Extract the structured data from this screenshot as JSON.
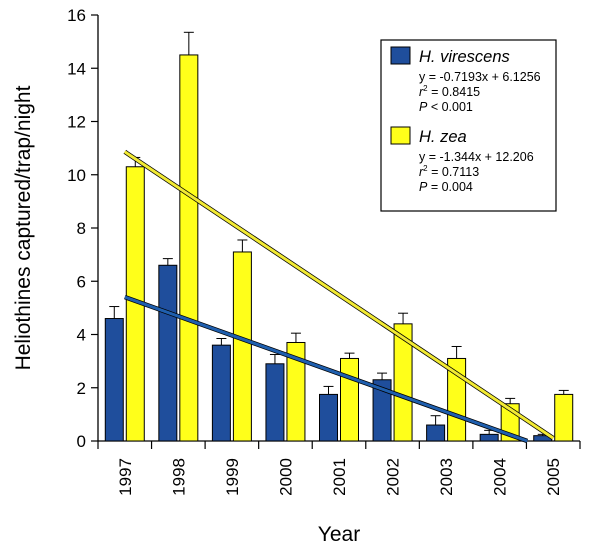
{
  "chart_data": {
    "type": "bar",
    "xlabel": "Year",
    "ylabel": "Heliothines captured/trap/night",
    "ylim": [
      0,
      16
    ],
    "yticks": [
      0,
      2,
      4,
      6,
      8,
      10,
      12,
      14,
      16
    ],
    "categories": [
      "1997",
      "1998",
      "1999",
      "2000",
      "2001",
      "2002",
      "2003",
      "2004",
      "2005"
    ],
    "grid": false,
    "legend_position": "top-right",
    "series": [
      {
        "name": "H. virescens",
        "color": "#1f4e9c",
        "values": [
          4.6,
          6.6,
          3.6,
          2.9,
          1.75,
          2.3,
          0.6,
          0.25,
          0.2
        ],
        "errors": [
          0.45,
          0.25,
          0.25,
          0.35,
          0.3,
          0.25,
          0.35,
          0.15,
          0.05
        ],
        "trend": {
          "slope": -0.7193,
          "intercept": 6.1256,
          "color": "#1f5fae"
        },
        "legend_lines": [
          {
            "left": "y = -0.7193x + 6.1256",
            "sup": "",
            "right": ""
          },
          {
            "left": "r",
            "sup": "2",
            "right": " = 0.8415"
          },
          {
            "left": "P",
            "sup": "",
            "right": " < 0.001"
          }
        ]
      },
      {
        "name": "H. zea",
        "color": "#ffff1a",
        "values": [
          10.3,
          14.5,
          7.1,
          3.7,
          3.1,
          4.4,
          3.1,
          1.4,
          1.75
        ],
        "errors": [
          0.35,
          0.85,
          0.45,
          0.35,
          0.2,
          0.4,
          0.45,
          0.2,
          0.15
        ],
        "trend": {
          "slope": -1.344,
          "intercept": 12.206,
          "color": "#f2ea33"
        },
        "legend_lines": [
          {
            "left": "y = -1.344x + 12.206",
            "sup": "",
            "right": ""
          },
          {
            "left": "r",
            "sup": "2",
            "right": " = 0.7113"
          },
          {
            "left": "P",
            "sup": "",
            "right": " = 0.004"
          }
        ]
      }
    ]
  }
}
